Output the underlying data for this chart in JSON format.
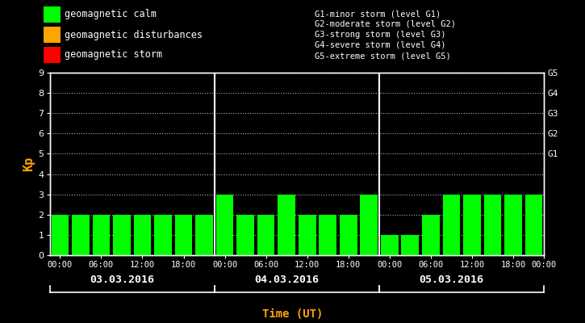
{
  "background_color": "#000000",
  "text_color": "#ffffff",
  "xlabel_color": "#ffa500",
  "ylabel_color": "#ffa500",
  "bar_color_calm": "#00ff00",
  "bar_color_disturbance": "#ffa500",
  "bar_color_storm": "#ff0000",
  "ylabel": "Kp",
  "xlabel": "Time (UT)",
  "ylim": [
    0,
    9
  ],
  "yticks": [
    0,
    1,
    2,
    3,
    4,
    5,
    6,
    7,
    8,
    9
  ],
  "days": [
    "03.03.2016",
    "04.03.2016",
    "05.03.2016"
  ],
  "kp_values": [
    2,
    2,
    2,
    2,
    2,
    2,
    2,
    2,
    3,
    2,
    2,
    3,
    2,
    2,
    2,
    3,
    1,
    1,
    2,
    3,
    3,
    3,
    3,
    3
  ],
  "right_labels": [
    {
      "label": "G5",
      "y": 9
    },
    {
      "label": "G4",
      "y": 8
    },
    {
      "label": "G3",
      "y": 7
    },
    {
      "label": "G2",
      "y": 6
    },
    {
      "label": "G1",
      "y": 5
    }
  ],
  "legend_items": [
    {
      "label": "geomagnetic calm",
      "color": "#00ff00"
    },
    {
      "label": "geomagnetic disturbances",
      "color": "#ffa500"
    },
    {
      "label": "geomagnetic storm",
      "color": "#ff0000"
    }
  ],
  "storm_level_lines": [
    "G1-minor storm (level G1)",
    "G2-moderate storm (level G2)",
    "G3-strong storm (level G3)",
    "G4-severe storm (level G4)",
    "G5-extreme storm (level G5)"
  ],
  "time_tick_labels": [
    "00:00",
    "06:00",
    "12:00",
    "18:00",
    "00:00"
  ],
  "n_per_day": 8,
  "font_family": "monospace",
  "bar_width": 0.85
}
